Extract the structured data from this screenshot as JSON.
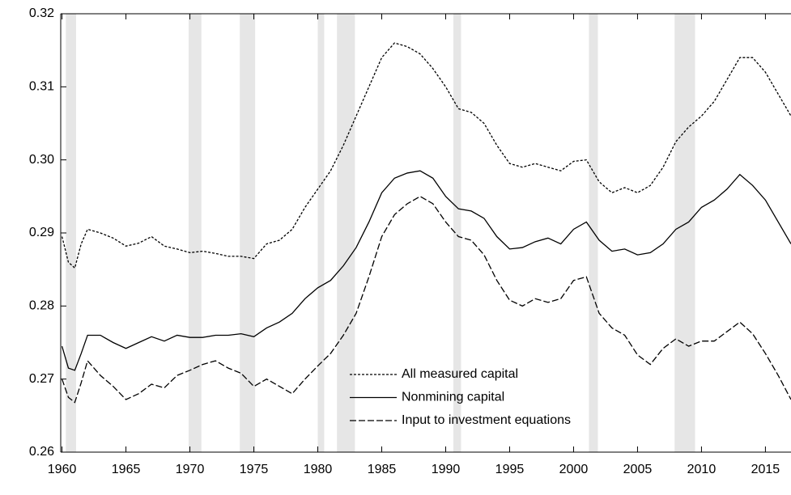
{
  "chart_data": {
    "type": "line",
    "xlim": [
      1959.9,
      2017
    ],
    "ylim": [
      0.26,
      0.32
    ],
    "xticks": [
      1960,
      1965,
      1970,
      1975,
      1980,
      1985,
      1990,
      1995,
      2000,
      2005,
      2010,
      2015
    ],
    "yticks": [
      0.26,
      0.27,
      0.28,
      0.29,
      {
        "value": 0.3,
        "label": "0.30"
      },
      0.31,
      0.32
    ],
    "shading": [
      [
        1960.3,
        1961.1
      ],
      [
        1969.9,
        1970.9
      ],
      [
        1973.9,
        1975.1
      ],
      [
        1980.0,
        1980.5
      ],
      [
        1981.5,
        1982.9
      ],
      [
        1990.6,
        1991.2
      ],
      [
        2001.2,
        2001.9
      ],
      [
        2007.9,
        2009.5
      ]
    ],
    "shading_color": "#e6e6e6",
    "legend": "bottom-center",
    "x": [
      1960,
      1960.5,
      1961,
      1961.5,
      1962,
      1963,
      1964,
      1965,
      1966,
      1967,
      1968,
      1969,
      1970,
      1971,
      1972,
      1973,
      1974,
      1975,
      1976,
      1977,
      1978,
      1979,
      1980,
      1981,
      1982,
      1983,
      1984,
      1985,
      1986,
      1987,
      1988,
      1989,
      1990,
      1991,
      1992,
      1993,
      1994,
      1995,
      1996,
      1997,
      1998,
      1999,
      2000,
      2001,
      2002,
      2003,
      2004,
      2005,
      2006,
      2007,
      2008,
      2009,
      2010,
      2011,
      2012,
      2013,
      2014,
      2015,
      2016,
      2017
    ],
    "series": [
      {
        "name": "All measured capital",
        "color": "#000000",
        "dash": "3,2",
        "values": [
          0.2895,
          0.286,
          0.2852,
          0.2885,
          0.2905,
          0.29,
          0.2893,
          0.2882,
          0.2886,
          0.2895,
          0.2882,
          0.2878,
          0.2873,
          0.2875,
          0.2872,
          0.2868,
          0.2868,
          0.2865,
          0.2885,
          0.289,
          0.2905,
          0.2935,
          0.296,
          0.2985,
          0.302,
          0.306,
          0.31,
          0.314,
          0.316,
          0.3155,
          0.3145,
          0.3125,
          0.31,
          0.307,
          0.3065,
          0.305,
          0.302,
          0.2995,
          0.299,
          0.2995,
          0.299,
          0.2985,
          0.2998,
          0.3,
          0.297,
          0.2955,
          0.2962,
          0.2955,
          0.2965,
          0.299,
          0.3025,
          0.3045,
          0.306,
          0.308,
          0.311,
          0.314,
          0.314,
          0.312,
          0.309,
          0.306
        ]
      },
      {
        "name": "Nonmining capital",
        "color": "#000000",
        "dash": "none",
        "values": [
          0.2745,
          0.2715,
          0.2712,
          0.2735,
          0.276,
          0.276,
          0.275,
          0.2742,
          0.275,
          0.2758,
          0.2752,
          0.276,
          0.2757,
          0.2757,
          0.276,
          0.276,
          0.2762,
          0.2758,
          0.277,
          0.2778,
          0.279,
          0.281,
          0.2825,
          0.2835,
          0.2855,
          0.288,
          0.2915,
          0.2955,
          0.2975,
          0.2982,
          0.2985,
          0.2975,
          0.295,
          0.2933,
          0.293,
          0.292,
          0.2895,
          0.2878,
          0.288,
          0.2888,
          0.2893,
          0.2885,
          0.2905,
          0.2915,
          0.289,
          0.2875,
          0.2878,
          0.287,
          0.2873,
          0.2885,
          0.2905,
          0.2915,
          0.2935,
          0.2945,
          0.296,
          0.298,
          0.2965,
          0.2945,
          0.2915,
          0.2885
        ]
      },
      {
        "name": "Input to investment equations",
        "color": "#000000",
        "dash": "8,3",
        "values": [
          0.27,
          0.2675,
          0.2668,
          0.2695,
          0.2725,
          0.2705,
          0.269,
          0.2672,
          0.268,
          0.2693,
          0.2688,
          0.2705,
          0.2712,
          0.272,
          0.2725,
          0.2715,
          0.2708,
          0.269,
          0.27,
          0.269,
          0.268,
          0.27,
          0.2718,
          0.2735,
          0.276,
          0.279,
          0.284,
          0.2895,
          0.2925,
          0.294,
          0.295,
          0.294,
          0.2915,
          0.2895,
          0.289,
          0.287,
          0.2835,
          0.2808,
          0.28,
          0.281,
          0.2805,
          0.281,
          0.2835,
          0.284,
          0.279,
          0.277,
          0.276,
          0.2733,
          0.272,
          0.2742,
          0.2755,
          0.2745,
          0.2752,
          0.2752,
          0.2765,
          0.2778,
          0.2762,
          0.2735,
          0.2705,
          0.2672
        ]
      }
    ]
  }
}
